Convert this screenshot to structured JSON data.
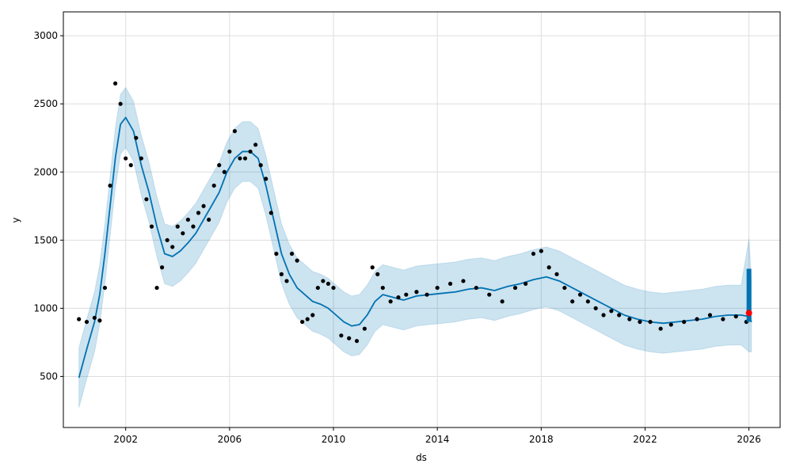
{
  "chart_data": {
    "type": "scatter",
    "title": "",
    "xlabel": "ds",
    "ylabel": "y",
    "xlim": [
      1999.6,
      2027.2
    ],
    "ylim": [
      125,
      3175
    ],
    "grid": true,
    "x_ticks": [
      2002,
      2006,
      2010,
      2014,
      2018,
      2022,
      2026
    ],
    "x_tick_labels": [
      "2002",
      "2006",
      "2010",
      "2014",
      "2018",
      "2022",
      "2026"
    ],
    "y_ticks": [
      500,
      1000,
      1500,
      2000,
      2500,
      3000
    ],
    "y_tick_labels": [
      "500",
      "1000",
      "1500",
      "2000",
      "2500",
      "3000"
    ],
    "colors": {
      "observed": "#000000",
      "forecast": "#0072B2",
      "interval": "#0072B2",
      "highlight": "#ff0000",
      "grid": "#dddddd",
      "frame": "#000000"
    },
    "series": [
      {
        "role": "observed",
        "x": [
          2000.2,
          2000.5,
          2000.8,
          2001.0,
          2001.2,
          2001.4,
          2001.6,
          2001.8,
          2002.0,
          2002.2,
          2002.4,
          2002.6,
          2002.8,
          2003.0,
          2003.2,
          2003.4,
          2003.6,
          2003.8,
          2004.0,
          2004.2,
          2004.4,
          2004.6,
          2004.8,
          2005.0,
          2005.2,
          2005.4,
          2005.6,
          2005.8,
          2006.0,
          2006.2,
          2006.4,
          2006.6,
          2006.8,
          2007.0,
          2007.2,
          2007.4,
          2007.6,
          2007.8,
          2008.0,
          2008.2,
          2008.4,
          2008.6,
          2008.8,
          2009.0,
          2009.2,
          2009.4,
          2009.6,
          2009.8,
          2010.0,
          2010.3,
          2010.6,
          2010.9,
          2011.2,
          2011.5,
          2011.7,
          2011.9,
          2012.2,
          2012.5,
          2012.8,
          2013.2,
          2013.6,
          2014.0,
          2014.5,
          2015.0,
          2015.5,
          2016.0,
          2016.5,
          2017.0,
          2017.4,
          2017.7,
          2018.0,
          2018.3,
          2018.6,
          2018.9,
          2019.2,
          2019.5,
          2019.8,
          2020.1,
          2020.4,
          2020.7,
          2021.0,
          2021.4,
          2021.8,
          2022.2,
          2022.6,
          2023.0,
          2023.5,
          2024.0,
          2024.5,
          2025.0,
          2025.5,
          2025.9
        ],
        "y": [
          920,
          900,
          930,
          910,
          1150,
          1900,
          2650,
          2500,
          2100,
          2050,
          2250,
          2100,
          1800,
          1600,
          1150,
          1300,
          1500,
          1450,
          1600,
          1550,
          1650,
          1600,
          1700,
          1750,
          1650,
          1900,
          2050,
          2000,
          2150,
          2300,
          2100,
          2100,
          2150,
          2200,
          2050,
          1950,
          1700,
          1400,
          1250,
          1200,
          1400,
          1350,
          900,
          920,
          950,
          1150,
          1200,
          1180,
          1150,
          800,
          780,
          760,
          850,
          1300,
          1250,
          1150,
          1050,
          1080,
          1100,
          1120,
          1100,
          1150,
          1180,
          1200,
          1150,
          1100,
          1050,
          1150,
          1180,
          1400,
          1420,
          1300,
          1250,
          1150,
          1050,
          1100,
          1050,
          1000,
          950,
          980,
          950,
          920,
          900,
          900,
          850,
          880,
          900,
          920,
          950,
          920,
          940,
          900
        ]
      },
      {
        "role": "forecast",
        "x": [
          2000.2,
          2000.5,
          2000.8,
          2001.0,
          2001.2,
          2001.4,
          2001.6,
          2001.8,
          2002.0,
          2002.3,
          2002.6,
          2002.9,
          2003.2,
          2003.5,
          2003.8,
          2004.1,
          2004.4,
          2004.7,
          2005.0,
          2005.3,
          2005.6,
          2005.9,
          2006.2,
          2006.5,
          2006.8,
          2007.1,
          2007.4,
          2007.7,
          2008.0,
          2008.3,
          2008.6,
          2008.9,
          2009.2,
          2009.5,
          2009.8,
          2010.1,
          2010.4,
          2010.7,
          2011.0,
          2011.3,
          2011.6,
          2011.9,
          2012.3,
          2012.7,
          2013.2,
          2013.7,
          2014.2,
          2014.7,
          2015.2,
          2015.7,
          2016.2,
          2016.7,
          2017.2,
          2017.7,
          2018.2,
          2018.7,
          2019.2,
          2019.7,
          2020.2,
          2020.7,
          2021.2,
          2021.7,
          2022.2,
          2022.7,
          2023.2,
          2023.7,
          2024.2,
          2024.7,
          2025.2,
          2025.7,
          2026.0,
          2026.1
        ],
        "y": [
          490,
          700,
          900,
          1100,
          1400,
          1750,
          2100,
          2350,
          2400,
          2300,
          2050,
          1850,
          1600,
          1400,
          1380,
          1420,
          1480,
          1550,
          1650,
          1750,
          1850,
          2000,
          2100,
          2150,
          2150,
          2100,
          1900,
          1650,
          1400,
          1250,
          1150,
          1100,
          1050,
          1030,
          1000,
          950,
          900,
          870,
          880,
          950,
          1050,
          1100,
          1080,
          1060,
          1090,
          1100,
          1110,
          1120,
          1140,
          1150,
          1130,
          1160,
          1180,
          1210,
          1230,
          1200,
          1150,
          1100,
          1050,
          1000,
          950,
          920,
          900,
          890,
          900,
          910,
          920,
          940,
          950,
          950,
          940,
          900
        ]
      },
      {
        "role": "interval",
        "x": [
          2000.2,
          2000.5,
          2000.8,
          2001.0,
          2001.2,
          2001.4,
          2001.6,
          2001.8,
          2002.0,
          2002.3,
          2002.6,
          2002.9,
          2003.2,
          2003.5,
          2003.8,
          2004.1,
          2004.4,
          2004.7,
          2005.0,
          2005.3,
          2005.6,
          2005.9,
          2006.2,
          2006.5,
          2006.8,
          2007.1,
          2007.4,
          2007.7,
          2008.0,
          2008.3,
          2008.6,
          2008.9,
          2009.2,
          2009.5,
          2009.8,
          2010.1,
          2010.4,
          2010.7,
          2011.0,
          2011.3,
          2011.6,
          2011.9,
          2012.3,
          2012.7,
          2013.2,
          2013.7,
          2014.2,
          2014.7,
          2015.2,
          2015.7,
          2016.2,
          2016.7,
          2017.2,
          2017.7,
          2018.2,
          2018.7,
          2019.2,
          2019.7,
          2020.2,
          2020.7,
          2021.2,
          2021.7,
          2022.2,
          2022.7,
          2023.2,
          2023.7,
          2024.2,
          2024.7,
          2025.2,
          2025.7,
          2026.0,
          2026.1
        ],
        "lower": [
          270,
          480,
          680,
          880,
          1180,
          1530,
          1880,
          2130,
          2180,
          2080,
          1830,
          1630,
          1380,
          1180,
          1160,
          1200,
          1260,
          1330,
          1430,
          1530,
          1630,
          1780,
          1880,
          1930,
          1930,
          1880,
          1680,
          1430,
          1180,
          1030,
          930,
          880,
          830,
          810,
          780,
          730,
          680,
          650,
          660,
          730,
          830,
          880,
          860,
          840,
          870,
          880,
          890,
          900,
          920,
          930,
          910,
          940,
          960,
          990,
          1010,
          980,
          930,
          880,
          830,
          780,
          730,
          700,
          680,
          670,
          680,
          690,
          700,
          720,
          730,
          730,
          680,
          680
        ],
        "upper": [
          710,
          920,
          1120,
          1320,
          1620,
          1970,
          2320,
          2570,
          2620,
          2520,
          2270,
          2070,
          1820,
          1620,
          1600,
          1640,
          1700,
          1770,
          1870,
          1970,
          2070,
          2220,
          2320,
          2370,
          2370,
          2320,
          2120,
          1870,
          1620,
          1470,
          1370,
          1320,
          1270,
          1250,
          1220,
          1170,
          1120,
          1090,
          1100,
          1170,
          1270,
          1320,
          1300,
          1280,
          1310,
          1320,
          1330,
          1340,
          1360,
          1370,
          1350,
          1380,
          1400,
          1430,
          1450,
          1420,
          1370,
          1320,
          1270,
          1220,
          1170,
          1140,
          1120,
          1110,
          1120,
          1130,
          1140,
          1160,
          1170,
          1170,
          1510,
          1200
        ]
      },
      {
        "role": "forecast-band",
        "x": [
          2026.0,
          2026.0
        ],
        "y": [
          900,
          1290
        ]
      },
      {
        "role": "highlight",
        "x": [
          2026.0
        ],
        "y": [
          965
        ]
      }
    ]
  }
}
